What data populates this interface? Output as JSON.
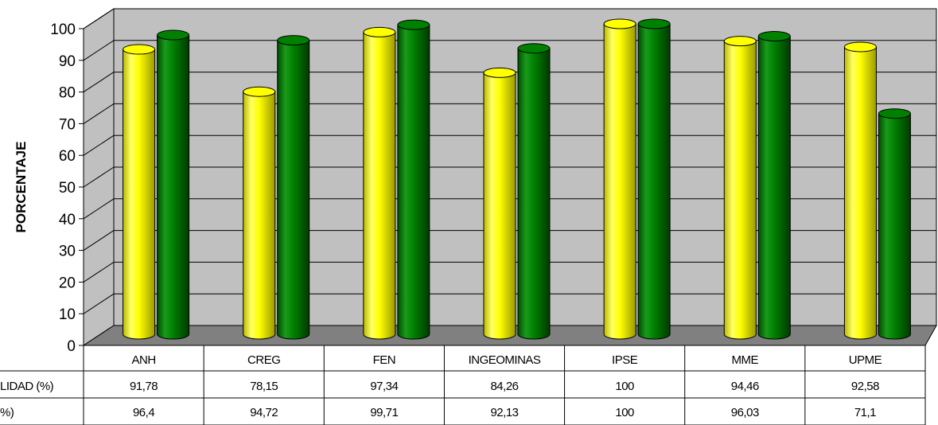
{
  "chart_data": {
    "type": "bar",
    "ylabel": "PORCENTAJE",
    "ylim": [
      0,
      100
    ],
    "yticks": [
      0,
      10,
      20,
      30,
      40,
      50,
      60,
      70,
      80,
      90,
      100
    ],
    "grid": true,
    "categories": [
      "ANH",
      "CREG",
      "FEN",
      "INGEOMINAS",
      "IPSE",
      "MME",
      "UPME"
    ],
    "series": [
      {
        "name": "LIDAD (%)",
        "values": [
          91.78,
          78.15,
          97.34,
          84.26,
          100,
          94.46,
          92.58
        ],
        "labels": [
          "91,78",
          "78,15",
          "97,34",
          "84,26",
          "100",
          "94,46",
          "92,58"
        ],
        "color": "#ffff00"
      },
      {
        "name": "%)",
        "values": [
          96.4,
          94.72,
          99.71,
          92.13,
          100,
          96.03,
          71.1
        ],
        "labels": [
          "96,4",
          "94,72",
          "99,71",
          "92,13",
          "100",
          "96,03",
          "71,1"
        ],
        "color": "#008000"
      }
    ],
    "colors": {
      "wall": "#c0c0c0",
      "floor": "#808080"
    }
  }
}
